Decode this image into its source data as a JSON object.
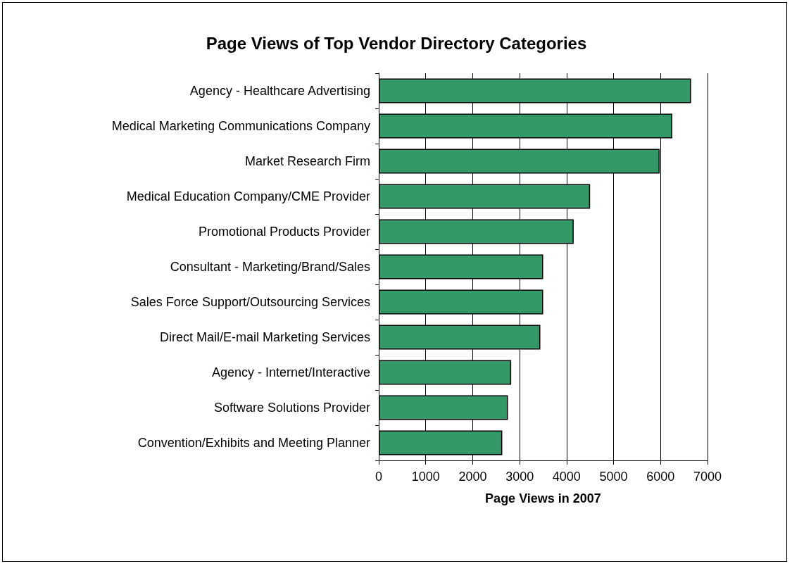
{
  "chart_data": {
    "type": "bar",
    "orientation": "horizontal",
    "title": "Page Views of Top Vendor Directory Categories",
    "xlabel": "Page Views in 2007",
    "categories": [
      "Agency - Healthcare Advertising",
      "Medical Marketing Communications Company",
      "Market Research Firm",
      "Medical Education Company/CME Provider",
      "Promotional Products Provider",
      "Consultant - Marketing/Brand/Sales",
      "Sales Force Support/Outsourcing Services",
      "Direct Mail/E-mail Marketing Services",
      "Agency - Internet/Interactive",
      "Software Solutions Provider",
      "Convention/Exhibits and Meeting Planner"
    ],
    "values": [
      6650,
      6250,
      5980,
      4500,
      4150,
      3500,
      3500,
      3440,
      2820,
      2750,
      2630
    ],
    "color": "#339966",
    "xlim": [
      0,
      7000
    ],
    "xticks": [
      0,
      1000,
      2000,
      3000,
      4000,
      5000,
      6000,
      7000
    ],
    "grid": "x"
  }
}
